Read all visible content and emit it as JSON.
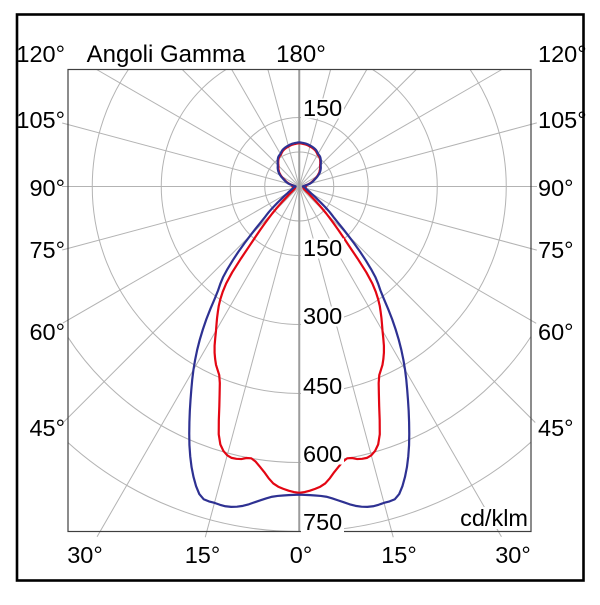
{
  "chart_data": {
    "type": "polar-photometric",
    "title": "Angoli Gamma",
    "zenith_label": "180°",
    "unit": "cd/klm",
    "angular_grid_step_deg": 15,
    "side_angle_labels": [
      "120°",
      "105°",
      "90°",
      "75°",
      "60°",
      "45°"
    ],
    "bottom_angle_labels": [
      "30°",
      "15°",
      "0°",
      "15°",
      "30°"
    ],
    "ring_values_labeled": [
      150,
      300,
      450,
      600,
      750
    ],
    "ring_value_minor": 75,
    "radial_axis_max": 750,
    "ring_labels": [
      {
        "text": "150",
        "value": 150,
        "position": "above-center"
      },
      {
        "text": "150",
        "value": 150,
        "position": "below-center"
      },
      {
        "text": "300",
        "value": 300,
        "position": "below-center"
      },
      {
        "text": "450",
        "value": 450,
        "position": "below-center"
      },
      {
        "text": "600",
        "value": 600,
        "position": "below-center"
      },
      {
        "text": "750",
        "value": 750,
        "position": "below-center"
      }
    ],
    "colors": {
      "red_curve": "#e30613",
      "blue_curve": "#2e3192",
      "grid": "#b3b3b3",
      "axis": "#9c9c9c",
      "plot_border": "#3f3f3f",
      "frame": "#000000",
      "text": "#000000"
    },
    "series": [
      {
        "name": "red-curve",
        "color": "#e30613",
        "symmetry": "mirrored-left-right",
        "points_gamma_deg_vs_cd_per_klm": [
          [
            0,
            666
          ],
          [
            2.5,
            660
          ],
          [
            5,
            648
          ],
          [
            7.5,
            620
          ],
          [
            10,
            600
          ],
          [
            12.5,
            607
          ],
          [
            15,
            605
          ],
          [
            17.5,
            578
          ],
          [
            20,
            508
          ],
          [
            22.5,
            452
          ],
          [
            25,
            428
          ],
          [
            27.5,
            399
          ],
          [
            30,
            362
          ],
          [
            32.5,
            331
          ],
          [
            35,
            299
          ],
          [
            37.5,
            252
          ],
          [
            40,
            168
          ],
          [
            42.5,
            118
          ],
          [
            45,
            83
          ],
          [
            47.5,
            55
          ],
          [
            50,
            36
          ],
          [
            52.5,
            27
          ],
          [
            55,
            20
          ],
          [
            57.5,
            16
          ],
          [
            60,
            13
          ],
          [
            65,
            11
          ],
          [
            70,
            10
          ],
          [
            75,
            9
          ],
          [
            80,
            10
          ],
          [
            85,
            13
          ],
          [
            90,
            15
          ],
          [
            95,
            11
          ],
          [
            100,
            13
          ],
          [
            105,
            22
          ],
          [
            110,
            29
          ],
          [
            115,
            36
          ],
          [
            120,
            45
          ],
          [
            125,
            53
          ],
          [
            130,
            59
          ],
          [
            135,
            64
          ],
          [
            140,
            71
          ],
          [
            145,
            77
          ],
          [
            150,
            80
          ],
          [
            155,
            85
          ],
          [
            160,
            88
          ],
          [
            165,
            90
          ],
          [
            170,
            92
          ],
          [
            175,
            93
          ],
          [
            180,
            94
          ]
        ]
      },
      {
        "name": "blue-curve",
        "color": "#2e3192",
        "symmetry": "mirrored-left-right",
        "points_gamma_deg_vs_cd_per_klm": [
          [
            0,
            670
          ],
          [
            2.5,
            672
          ],
          [
            5,
            677
          ],
          [
            7.5,
            690
          ],
          [
            10,
            705
          ],
          [
            12.5,
            713
          ],
          [
            15,
            712
          ],
          [
            17.5,
            708
          ],
          [
            20,
            672
          ],
          [
            22.5,
            622
          ],
          [
            25,
            565
          ],
          [
            27.5,
            510
          ],
          [
            30,
            460
          ],
          [
            32.5,
            408
          ],
          [
            35,
            352
          ],
          [
            37.5,
            295
          ],
          [
            40,
            258
          ],
          [
            42.5,
            205
          ],
          [
            45,
            150
          ],
          [
            47.5,
            108
          ],
          [
            50,
            86
          ],
          [
            52.5,
            64
          ],
          [
            55,
            48
          ],
          [
            57.5,
            38
          ],
          [
            60,
            30
          ],
          [
            65,
            22
          ],
          [
            70,
            17
          ],
          [
            75,
            14
          ],
          [
            80,
            12
          ],
          [
            85,
            10
          ],
          [
            90,
            8
          ],
          [
            95,
            9
          ],
          [
            100,
            14
          ],
          [
            105,
            24
          ],
          [
            110,
            31
          ],
          [
            115,
            38
          ],
          [
            120,
            47
          ],
          [
            125,
            55
          ],
          [
            130,
            61
          ],
          [
            135,
            66
          ],
          [
            140,
            73
          ],
          [
            145,
            79
          ],
          [
            150,
            82
          ],
          [
            155,
            87
          ],
          [
            160,
            90
          ],
          [
            165,
            92
          ],
          [
            170,
            94
          ],
          [
            175,
            95
          ],
          [
            180,
            96
          ]
        ]
      }
    ]
  }
}
